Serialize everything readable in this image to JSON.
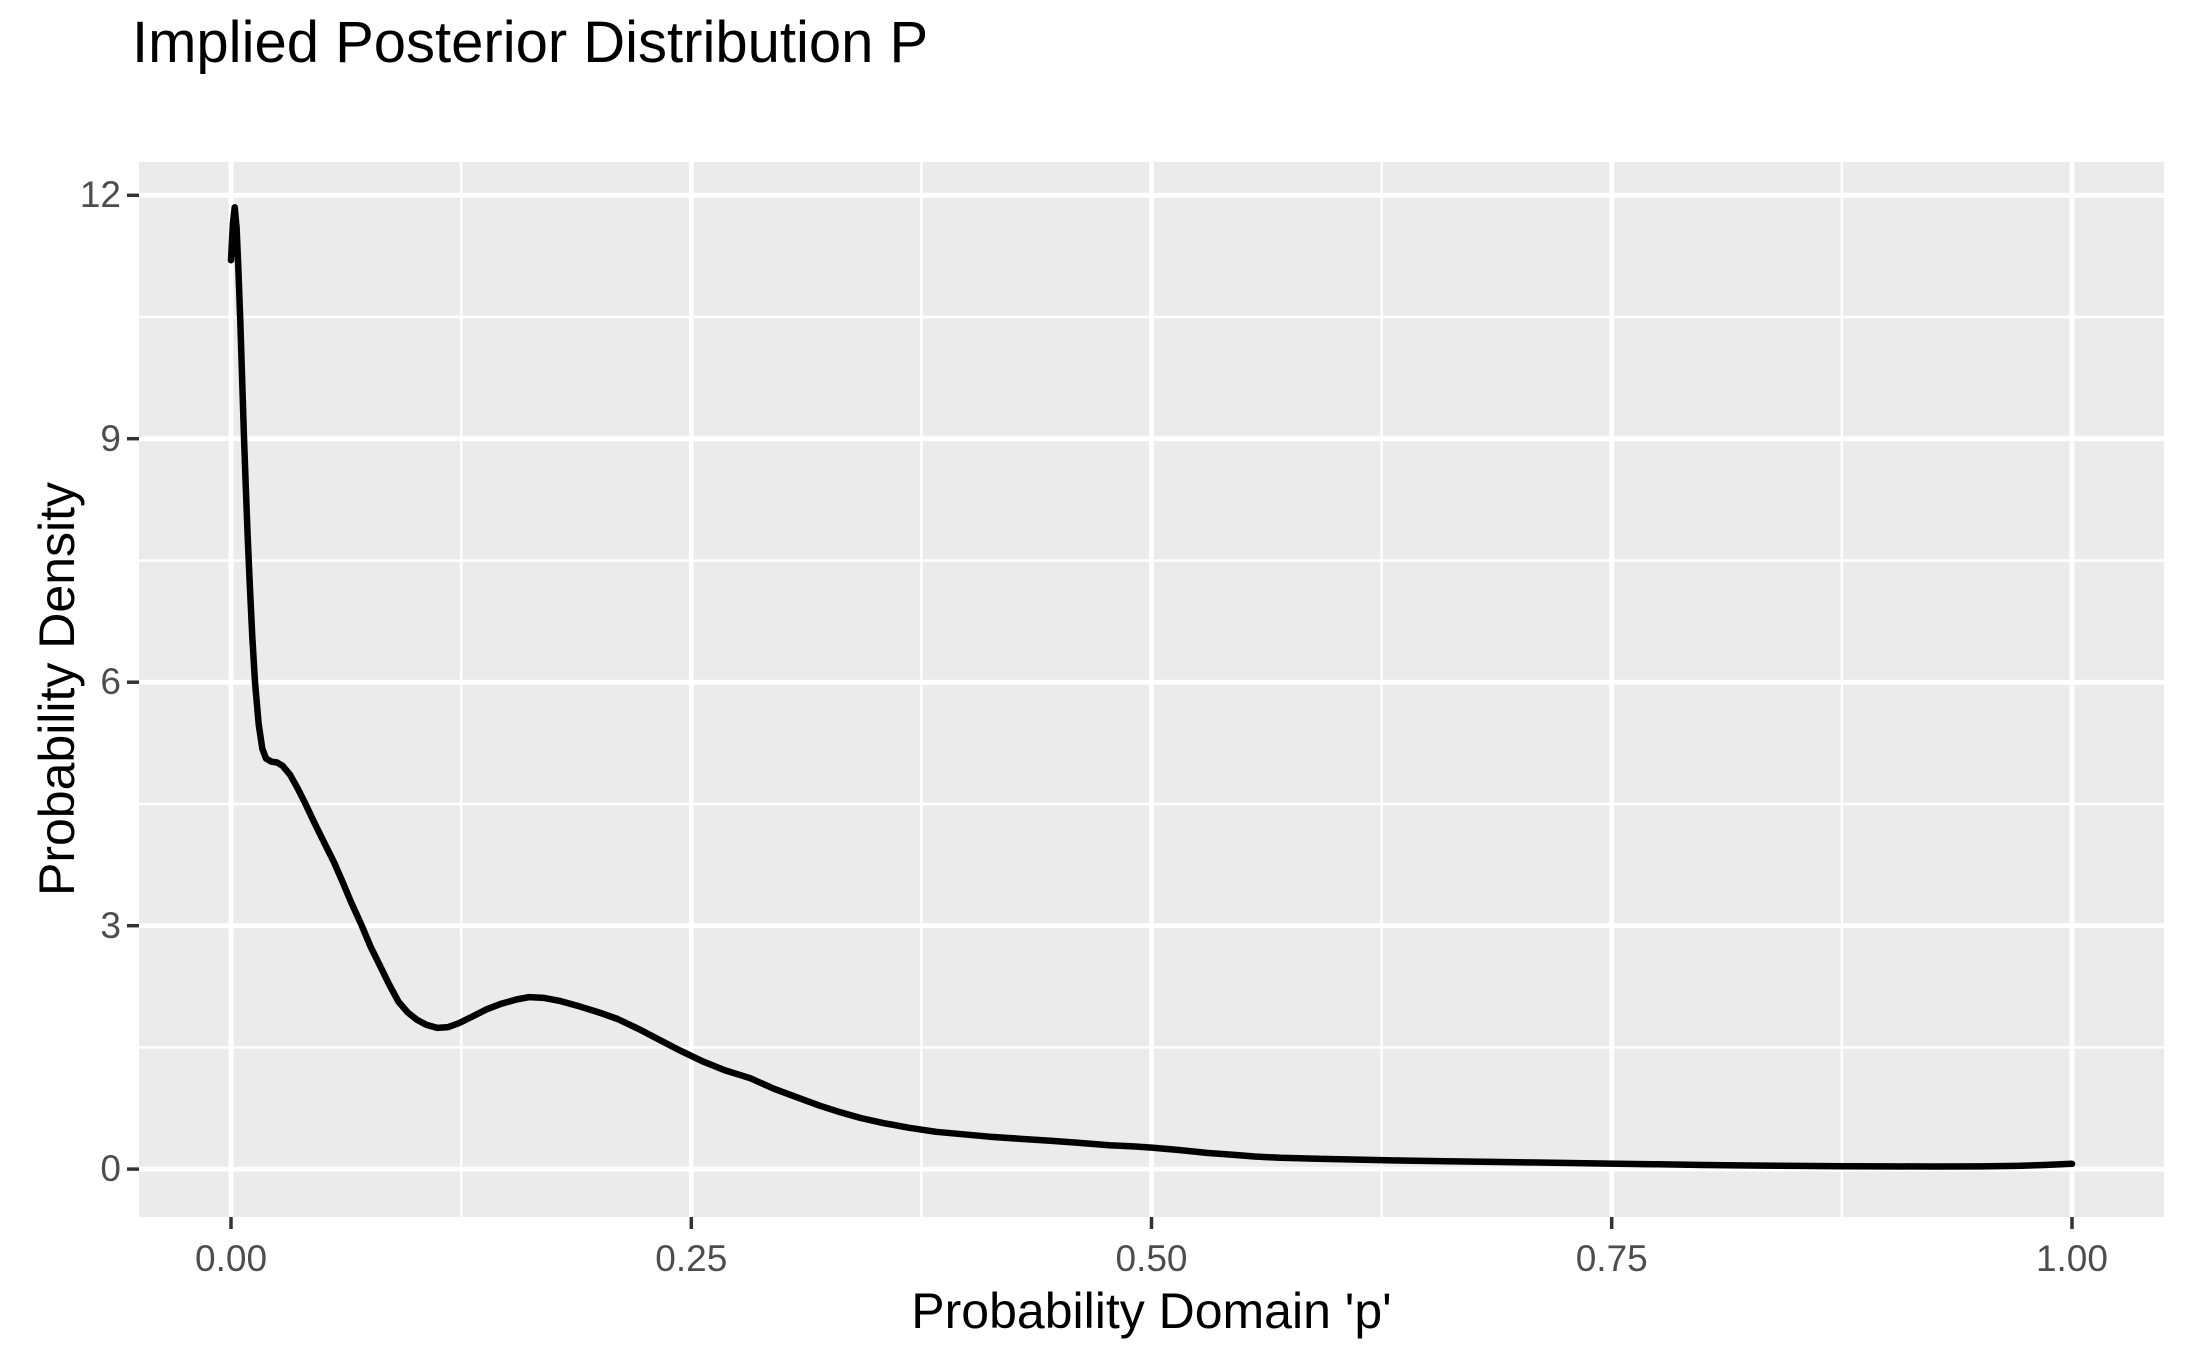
{
  "chart_data": {
    "type": "line",
    "title": "Implied Posterior Distribution P",
    "xlabel": "Probability Domain 'p'",
    "ylabel": "Probability Density",
    "x_tick_labels": [
      "0.00",
      "0.25",
      "0.50",
      "0.75",
      "1.00"
    ],
    "x_tick_values": [
      0,
      0.25,
      0.5,
      0.75,
      1.0
    ],
    "y_tick_labels": [
      "0",
      "3",
      "6",
      "9",
      "12"
    ],
    "y_tick_values": [
      0,
      3,
      6,
      9,
      12
    ],
    "x_minor_gridlines": [
      0.125,
      0.375,
      0.625,
      0.875
    ],
    "y_minor_gridlines": [
      1.5,
      4.5,
      7.5,
      10.5
    ],
    "xlim": [
      -0.05,
      1.05
    ],
    "ylim": [
      -0.59,
      12.41
    ],
    "grid": true,
    "legend": "none",
    "series": [
      {
        "name": "posterior density curve",
        "color": "#000000",
        "points": [
          [
            0.0,
            11.2
          ],
          [
            0.001,
            11.65
          ],
          [
            0.002,
            11.85
          ],
          [
            0.003,
            11.6
          ],
          [
            0.004,
            11.08
          ],
          [
            0.005,
            10.45
          ],
          [
            0.006,
            9.75
          ],
          [
            0.007,
            9.05
          ],
          [
            0.008,
            8.4
          ],
          [
            0.009,
            7.82
          ],
          [
            0.01,
            7.28
          ],
          [
            0.0115,
            6.58
          ],
          [
            0.013,
            6.0
          ],
          [
            0.015,
            5.48
          ],
          [
            0.017,
            5.18
          ],
          [
            0.019,
            5.06
          ],
          [
            0.022,
            5.02
          ],
          [
            0.025,
            5.01
          ],
          [
            0.028,
            4.97
          ],
          [
            0.032,
            4.86
          ],
          [
            0.036,
            4.7
          ],
          [
            0.04,
            4.52
          ],
          [
            0.045,
            4.28
          ],
          [
            0.05,
            4.05
          ],
          [
            0.056,
            3.78
          ],
          [
            0.06,
            3.57
          ],
          [
            0.065,
            3.3
          ],
          [
            0.071,
            3.0
          ],
          [
            0.076,
            2.73
          ],
          [
            0.081,
            2.5
          ],
          [
            0.086,
            2.27
          ],
          [
            0.091,
            2.06
          ],
          [
            0.096,
            1.93
          ],
          [
            0.101,
            1.84
          ],
          [
            0.106,
            1.78
          ],
          [
            0.112,
            1.74
          ],
          [
            0.118,
            1.75
          ],
          [
            0.124,
            1.8
          ],
          [
            0.131,
            1.88
          ],
          [
            0.139,
            1.97
          ],
          [
            0.147,
            2.04
          ],
          [
            0.155,
            2.09
          ],
          [
            0.162,
            2.12
          ],
          [
            0.17,
            2.11
          ],
          [
            0.179,
            2.07
          ],
          [
            0.19,
            2.0
          ],
          [
            0.2,
            1.93
          ],
          [
            0.21,
            1.85
          ],
          [
            0.222,
            1.72
          ],
          [
            0.233,
            1.59
          ],
          [
            0.244,
            1.46
          ],
          [
            0.256,
            1.33
          ],
          [
            0.268,
            1.22
          ],
          [
            0.282,
            1.12
          ],
          [
            0.295,
            0.99
          ],
          [
            0.308,
            0.88
          ],
          [
            0.32,
            0.78
          ],
          [
            0.331,
            0.7
          ],
          [
            0.342,
            0.63
          ],
          [
            0.354,
            0.57
          ],
          [
            0.368,
            0.51
          ],
          [
            0.383,
            0.46
          ],
          [
            0.397,
            0.43
          ],
          [
            0.412,
            0.4
          ],
          [
            0.428,
            0.375
          ],
          [
            0.445,
            0.35
          ],
          [
            0.46,
            0.325
          ],
          [
            0.477,
            0.295
          ],
          [
            0.49,
            0.28
          ],
          [
            0.5,
            0.265
          ],
          [
            0.515,
            0.235
          ],
          [
            0.53,
            0.2
          ],
          [
            0.545,
            0.175
          ],
          [
            0.556,
            0.155
          ],
          [
            0.57,
            0.14
          ],
          [
            0.59,
            0.127
          ],
          [
            0.612,
            0.117
          ],
          [
            0.635,
            0.106
          ],
          [
            0.66,
            0.096
          ],
          [
            0.685,
            0.089
          ],
          [
            0.71,
            0.081
          ],
          [
            0.735,
            0.073
          ],
          [
            0.753,
            0.066
          ],
          [
            0.775,
            0.059
          ],
          [
            0.8,
            0.051
          ],
          [
            0.825,
            0.045
          ],
          [
            0.85,
            0.04
          ],
          [
            0.875,
            0.036
          ],
          [
            0.9,
            0.033
          ],
          [
            0.925,
            0.032
          ],
          [
            0.95,
            0.034
          ],
          [
            0.97,
            0.04
          ],
          [
            0.985,
            0.051
          ],
          [
            1.0,
            0.066
          ]
        ]
      }
    ]
  },
  "style": {
    "figure_bg": "#FFFFFF",
    "panel_bg": "#EBEBEB",
    "gridline": "#FFFFFF",
    "curve": "#000000",
    "tick_text": "#4D4D4D",
    "axis_text": "#000000",
    "tick_mark": "#333333"
  }
}
